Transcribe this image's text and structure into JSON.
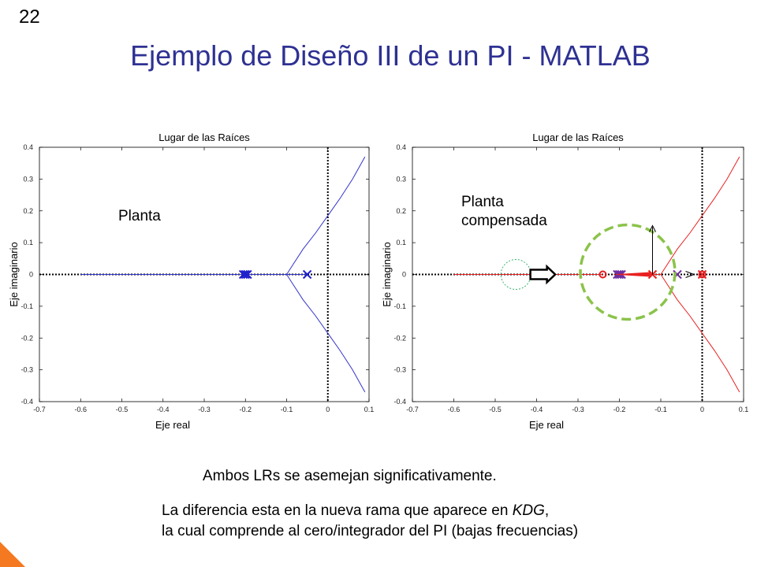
{
  "slide": {
    "number": "22",
    "title": "Ejemplo de Diseño III de un PI - MATLAB",
    "caption_1": "Ambos LRs se asemejan significativamente.",
    "caption_2_line1_pre": "La diferencia esta en la nueva rama que aparece en ",
    "caption_2_line1_em": "KDG",
    "caption_2_line1_post": ",",
    "caption_2_line2": "la cual comprende al cero/integrador del PI (bajas frecuencias)"
  },
  "colors": {
    "title": "#2e3192",
    "plant_locus": "#3333cc",
    "comp_locus": "#e82020",
    "annotation_circle": "#8bc34a",
    "accent_corner": "#f47920"
  },
  "chart_data": [
    {
      "type": "line",
      "title": "Lugar de las Raíces",
      "xlabel": "Eje real",
      "ylabel": "Eje imaginario",
      "xlim": [
        -0.7,
        0.1
      ],
      "ylim": [
        -0.4,
        0.4
      ],
      "xticks": [
        "-0.7",
        "-0.6",
        "-0.5",
        "-0.4",
        "-0.3",
        "-0.2",
        "-0.1",
        "0",
        "0.1"
      ],
      "yticks": [
        "0.4",
        "0.3",
        "0.2",
        "0.1",
        "0",
        "-0.1",
        "-0.2",
        "-0.3",
        "-0.4"
      ],
      "annotation": "Planta",
      "color": "#3333cc",
      "poles": [
        {
          "x": -0.2,
          "y": 0
        },
        {
          "x": -0.195,
          "y": 0
        },
        {
          "x": -0.205,
          "y": 0
        },
        {
          "x": -0.05,
          "y": 0
        }
      ],
      "branches": [
        {
          "points": [
            [
              -0.6,
              0
            ],
            [
              -0.205,
              0
            ]
          ]
        },
        {
          "points": [
            [
              -0.195,
              0
            ],
            [
              -0.1,
              0
            ]
          ]
        },
        {
          "points": [
            [
              -0.05,
              0
            ],
            [
              -0.1,
              0
            ]
          ]
        },
        {
          "points": [
            [
              -0.1,
              0
            ],
            [
              -0.085,
              0.03
            ],
            [
              -0.06,
              0.08
            ],
            [
              -0.03,
              0.13
            ],
            [
              0,
              0.185
            ],
            [
              0.03,
              0.24
            ],
            [
              0.06,
              0.3
            ],
            [
              0.09,
              0.37
            ]
          ]
        },
        {
          "points": [
            [
              -0.1,
              0
            ],
            [
              -0.085,
              -0.03
            ],
            [
              -0.06,
              -0.08
            ],
            [
              -0.03,
              -0.13
            ],
            [
              0,
              -0.185
            ],
            [
              0.03,
              -0.24
            ],
            [
              0.06,
              -0.3
            ],
            [
              0.09,
              -0.37
            ]
          ]
        }
      ]
    },
    {
      "type": "line",
      "title": "Lugar de las Raíces",
      "xlabel": "Eje real",
      "ylabel": "Eje imaginario",
      "xlim": [
        -0.7,
        0.1
      ],
      "ylim": [
        -0.4,
        0.4
      ],
      "xticks": [
        "-0.7",
        "-0.6",
        "-0.5",
        "-0.4",
        "-0.3",
        "-0.2",
        "-0.1",
        "0",
        "0.1"
      ],
      "yticks": [
        "0.4",
        "0.3",
        "0.2",
        "0.1",
        "0",
        "-0.1",
        "-0.2",
        "-0.3",
        "-0.4"
      ],
      "annotation": "Planta\ncompensada",
      "color": "#e82020",
      "poles": [
        {
          "x": -0.2,
          "y": 0
        },
        {
          "x": -0.195,
          "y": 0
        },
        {
          "x": -0.205,
          "y": 0
        },
        {
          "x": -0.12,
          "y": 0
        },
        {
          "x": -0.06,
          "y": 0
        },
        {
          "x": 0.0,
          "y": 0
        }
      ],
      "zeros": [
        {
          "x": -0.24,
          "y": 0
        },
        {
          "x": 0.0,
          "y": 0
        }
      ],
      "branches": [
        {
          "points": [
            [
              -0.6,
              0
            ],
            [
              -0.24,
              0
            ]
          ]
        },
        {
          "points": [
            [
              -0.195,
              0
            ],
            [
              -0.1,
              0
            ]
          ]
        },
        {
          "points": [
            [
              -0.1,
              0
            ],
            [
              -0.085,
              0.03
            ],
            [
              -0.06,
              0.08
            ],
            [
              -0.03,
              0.13
            ],
            [
              0,
              0.185
            ],
            [
              0.03,
              0.24
            ],
            [
              0.06,
              0.3
            ],
            [
              0.09,
              0.37
            ]
          ]
        },
        {
          "points": [
            [
              -0.1,
              0
            ],
            [
              -0.085,
              -0.03
            ],
            [
              -0.06,
              -0.08
            ],
            [
              -0.03,
              -0.13
            ],
            [
              0,
              -0.185
            ],
            [
              0.03,
              -0.24
            ],
            [
              0.06,
              -0.3
            ],
            [
              0.09,
              -0.37
            ]
          ]
        }
      ]
    }
  ]
}
